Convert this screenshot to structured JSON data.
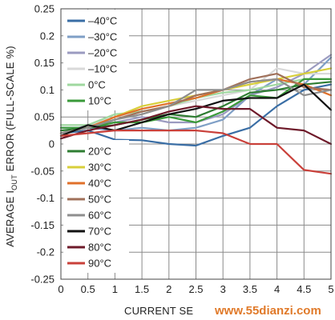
{
  "watermark": "www.55dianzi.com",
  "chart_data": {
    "type": "line",
    "ylabel_parts": [
      "AVERAGE I",
      "OUT",
      " ERROR (FULL-SCALE %)"
    ],
    "xlabel": "CURRENT SE",
    "xlim": [
      0,
      5
    ],
    "ylim": [
      -0.25,
      0.25
    ],
    "x_ticks": [
      "0",
      "0.5",
      "1",
      "1.5",
      "2",
      "2.5",
      "3",
      "3.5",
      "4",
      "4.5",
      "5"
    ],
    "y_ticks": [
      "0.25",
      "0.2",
      "0.15",
      "0.1",
      "0.05",
      "0",
      "-0.05",
      "-0.1",
      "-0.15",
      "-0.2",
      "-0.25"
    ],
    "grid": true,
    "x": [
      0,
      0.5,
      1,
      1.5,
      2,
      2.5,
      3,
      3.5,
      4,
      4.5,
      5
    ],
    "series": [
      {
        "name": "–40°C",
        "color": "#3a6ea5",
        "values": [
          0.02,
          0.025,
          0.008,
          0.007,
          0.0,
          -0.003,
          0.015,
          0.03,
          0.07,
          0.1,
          0.11
        ]
      },
      {
        "name": "–30°C",
        "color": "#7f9fc6",
        "values": [
          0.03,
          0.03,
          0.025,
          0.03,
          0.025,
          0.03,
          0.045,
          0.09,
          0.12,
          0.11,
          0.16
        ]
      },
      {
        "name": "–20°C",
        "color": "#9b9bc0",
        "values": [
          0.02,
          0.035,
          0.04,
          0.05,
          0.04,
          0.04,
          0.055,
          0.09,
          0.105,
          0.13,
          0.165
        ]
      },
      {
        "name": "–10°C",
        "color": "#d9d9d9",
        "values": [
          0.035,
          0.035,
          0.05,
          0.06,
          0.07,
          0.08,
          0.09,
          0.1,
          0.14,
          0.13,
          0.13
        ]
      },
      {
        "name": "0°C",
        "color": "#9fd89f",
        "values": [
          0.035,
          0.035,
          0.055,
          0.06,
          0.07,
          0.085,
          0.095,
          0.1,
          0.11,
          0.12,
          0.12
        ]
      },
      {
        "name": "10°C",
        "color": "#3a9a3a",
        "values": [
          0.03,
          0.03,
          0.04,
          0.04,
          0.05,
          0.04,
          0.06,
          0.09,
          0.085,
          0.12,
          0.12
        ]
      },
      {
        "name": "20°C",
        "color": "#2e7d32",
        "values": [
          0.025,
          0.03,
          0.035,
          0.045,
          0.055,
          0.05,
          0.07,
          0.095,
          0.1,
          0.11,
          0.115
        ]
      },
      {
        "name": "30°C",
        "color": "#d8cf3a",
        "values": [
          0.02,
          0.03,
          0.05,
          0.07,
          0.08,
          0.09,
          0.1,
          0.11,
          0.12,
          0.13,
          0.14
        ]
      },
      {
        "name": "40°C",
        "color": "#e0702a",
        "values": [
          0.02,
          0.03,
          0.05,
          0.065,
          0.075,
          0.085,
          0.1,
          0.115,
          0.12,
          0.11,
          0.09
        ]
      },
      {
        "name": "50°C",
        "color": "#a0705a",
        "values": [
          0.02,
          0.03,
          0.045,
          0.06,
          0.07,
          0.09,
          0.1,
          0.12,
          0.13,
          0.105,
          0.1
        ]
      },
      {
        "name": "60°C",
        "color": "#8e8e8e",
        "values": [
          0.02,
          0.03,
          0.045,
          0.055,
          0.07,
          0.1,
          0.1,
          0.115,
          0.12,
          0.09,
          0.1
        ]
      },
      {
        "name": "70°C",
        "color": "#111111",
        "values": [
          0.015,
          0.035,
          0.025,
          0.04,
          0.055,
          0.065,
          0.08,
          0.085,
          0.085,
          0.11,
          0.063
        ]
      },
      {
        "name": "80°C",
        "color": "#6e1a2a",
        "values": [
          0.01,
          0.025,
          0.035,
          0.045,
          0.06,
          0.07,
          0.065,
          0.065,
          0.03,
          0.025,
          0.0
        ]
      },
      {
        "name": "90°C",
        "color": "#c9403a",
        "values": [
          0.015,
          0.02,
          0.025,
          0.025,
          0.025,
          0.025,
          0.02,
          0.0,
          0.0,
          -0.048,
          -0.055
        ]
      }
    ],
    "legend_groups": [
      {
        "entries": [
          0,
          1,
          2,
          3,
          4,
          5
        ]
      },
      {
        "entries": [
          6,
          7,
          8,
          9,
          10,
          11,
          12,
          13
        ]
      }
    ]
  }
}
